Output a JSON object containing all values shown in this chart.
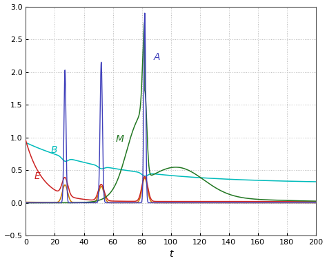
{
  "xlabel": "t",
  "xlim": [
    0,
    200
  ],
  "ylim": [
    -0.5,
    3.0
  ],
  "xticks": [
    0,
    20,
    40,
    60,
    80,
    100,
    120,
    140,
    160,
    180,
    200
  ],
  "yticks": [
    -0.5,
    0.0,
    0.5,
    1.0,
    1.5,
    2.0,
    2.5,
    3.0
  ],
  "color_A": "#4040bb",
  "color_B": "#00bbbb",
  "color_E": "#cc2222",
  "color_M": "#227722",
  "color_P": "#cc7700",
  "label_A": "A",
  "label_B": "B",
  "label_E": "E",
  "label_M": "M",
  "ann_A_x": 88,
  "ann_A_y": 2.18,
  "ann_B_x": 17,
  "ann_B_y": 0.76,
  "ann_E_x": 6,
  "ann_E_y": 0.36,
  "ann_M_x": 62,
  "ann_M_y": 0.93,
  "bg_color": "#ffffff",
  "grid_color": "#bbbbbb",
  "spine_color": "#555555"
}
